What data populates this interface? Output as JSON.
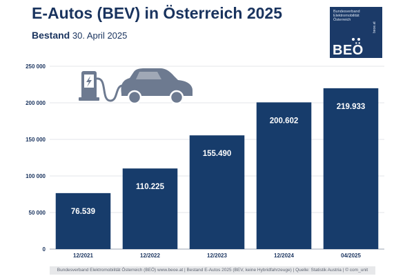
{
  "header": {
    "title": "E-Autos (BEV) in Österreich 2025",
    "subtitle_bold": "Bestand",
    "subtitle_date": "30. April 2025"
  },
  "logo": {
    "org_line1": "Bundesverband",
    "org_line2": "Elektromobilität",
    "org_line3": "Österreich",
    "abbr": "BEÖ",
    "website": "beoe.at",
    "background": "#1b3a68"
  },
  "icons": [
    "charging-station-icon",
    "cable-icon",
    "car-icon"
  ],
  "chart_data": {
    "type": "bar",
    "categories": [
      "12/2021",
      "12/2022",
      "12/2023",
      "12/2024",
      "04/2025"
    ],
    "values": [
      76539,
      110225,
      155490,
      200602,
      219933
    ],
    "data_labels": [
      "76.539",
      "110.225",
      "155.490",
      "200.602",
      "219.933"
    ],
    "ylim": [
      0,
      250000
    ],
    "yticks": [
      0,
      50000,
      100000,
      150000,
      200000,
      250000
    ],
    "ytick_labels": [
      "0",
      "50 000",
      "100 000",
      "150 000",
      "200 000",
      "250 000"
    ],
    "grid": true,
    "legend": "none",
    "bar_color": "#173c6b",
    "xlabel": "",
    "ylabel": ""
  },
  "footer": {
    "text": "Bundesverband Elektromobilität Österreich (BEÖ) www.beoe.at | Bestand E-Autos 2025 (BEV, keine Hybridfahrzeuge) | Quelle: Statistik Austria | © com_unit"
  }
}
